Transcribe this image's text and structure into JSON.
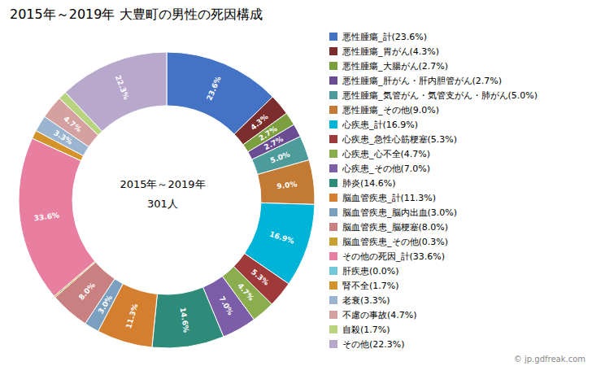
{
  "chart_data": {
    "type": "pie",
    "title": "2015年～2019年 大豊町の男性の死因構成",
    "categories": [
      "悪性腫瘍_計(23.6%)",
      "悪性腫瘍_胃がん(4.3%)",
      "悪性腫瘍_大腸がん(2.7%)",
      "悪性腫瘍_肝がん・肝内胆管がん(2.7%)",
      "悪性腫瘍_気管がん・気管支がん・肺がん(5.0%)",
      "悪性腫瘍_その他(9.0%)",
      "心疾患_計(16.9%)",
      "心疾患_急性心筋梗塞(5.3%)",
      "心疾患_心不全(4.7%)",
      "心疾患_その他(7.0%)",
      "肺炎(14.6%)",
      "脳血管疾患_計(11.3%)",
      "脳血管疾患_脳内出血(3.0%)",
      "脳血管疾患_脳梗塞(8.0%)",
      "脳血管疾患_その他(0.3%)",
      "その他の死因_計(33.6%)",
      "肝疾患(0.0%)",
      "腎不全(1.7%)",
      "老衰(3.3%)",
      "不慮の事故(4.7%)",
      "自殺(1.7%)",
      "その他(22.3%)"
    ],
    "values": [
      23.6,
      4.3,
      2.7,
      2.7,
      5.0,
      9.0,
      16.9,
      5.3,
      4.7,
      7.0,
      14.6,
      11.3,
      3.0,
      8.0,
      0.3,
      33.6,
      0.001,
      1.7,
      3.3,
      4.7,
      1.7,
      22.3
    ],
    "colors": [
      "#4472C4",
      "#7B2C2C",
      "#7B9E3E",
      "#6A4C93",
      "#4E9B9B",
      "#C27A34",
      "#00B4D8",
      "#9E3A3A",
      "#8AAD4E",
      "#7B5EA7",
      "#2E8B7A",
      "#D47F30",
      "#7B9FBF",
      "#C98080",
      "#C8A030",
      "#E87FA0",
      "#70C8D8",
      "#D4922A",
      "#9BB5D0",
      "#D4A0A0",
      "#B8D47F",
      "#B8A8CC"
    ],
    "data_labels": true,
    "value_labels": [
      "23.6%",
      "4.3%",
      "2.7%",
      "2.7%",
      "5.0%",
      "9.0%",
      "16.9%",
      "5.3%",
      "4.7%",
      "7.0%",
      "14.6%",
      "11.3%",
      "3.0%",
      "8.0%",
      null,
      "33.6%",
      null,
      null,
      "3.3%",
      "4.7%",
      null,
      "22.3%"
    ],
    "legend": "right",
    "annotations": [
      "2015年～2019年",
      "301人",
      "© jp.gdfreak.com"
    ]
  }
}
